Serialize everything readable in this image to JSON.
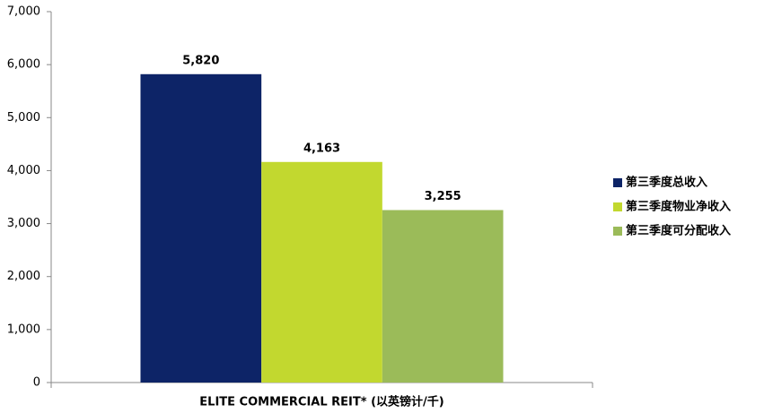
{
  "chart_data": {
    "type": "bar",
    "categories": [
      "ELITE COMMERCIAL REIT* (以英镑计/千)"
    ],
    "series": [
      {
        "name": "第三季度总收入",
        "color": "#0d2467",
        "values": [
          5820
        ],
        "value_labels": [
          "5,820"
        ]
      },
      {
        "name": "第三季度物业净收入",
        "color": "#c2d82f",
        "values": [
          4163
        ],
        "value_labels": [
          "4,163"
        ]
      },
      {
        "name": "第三季度可分配收入",
        "color": "#9bbb59",
        "values": [
          3255
        ],
        "value_labels": [
          "3,255"
        ]
      }
    ],
    "ylim": [
      0,
      7000
    ],
    "yticks": [
      0,
      {
        "value": 1000,
        "label": "1,000"
      },
      {
        "value": 2000,
        "label": "2,000"
      },
      {
        "value": 3000,
        "label": "3,000"
      },
      {
        "value": 4000,
        "label": "4,000"
      },
      {
        "value": 5000,
        "label": "5,000"
      },
      {
        "value": 6000,
        "label": "6,000"
      },
      {
        "value": 7000,
        "label": "7,000"
      }
    ],
    "legend": "right"
  }
}
